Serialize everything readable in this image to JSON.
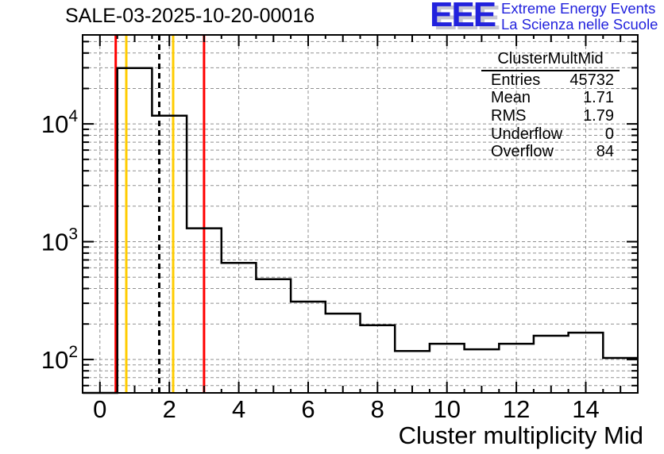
{
  "title": "SALE-03-2025-10-20-00016",
  "logo": {
    "acronym": "EEE",
    "line1": "Extreme Energy Events",
    "line2": "La Scienza nelle Scuole",
    "color": "#2222dd",
    "shadow_color": "#c8c8d2"
  },
  "stats_box": {
    "title": "ClusterMultMid",
    "rows": [
      {
        "label": "Entries",
        "value": "45732"
      },
      {
        "label": "Mean",
        "value": "1.71"
      },
      {
        "label": "RMS",
        "value": "1.79"
      },
      {
        "label": "Underflow",
        "value": "0"
      },
      {
        "label": "Overflow",
        "value": "84"
      }
    ]
  },
  "chart_data": {
    "type": "bar",
    "title": "SALE-03-2025-10-20-00016",
    "xlabel": "Cluster multiplicity Mid",
    "ylabel": "",
    "y_scale": "log",
    "x_range": [
      -0.5,
      15.5
    ],
    "y_range": [
      52,
      57000
    ],
    "grid": true,
    "grid_color": "#909090",
    "line_color": "#000000",
    "bin_width": 1,
    "bin_centers": [
      0,
      1,
      2,
      3,
      4,
      5,
      6,
      7,
      8,
      9,
      10,
      11,
      12,
      13,
      14,
      15
    ],
    "values": [
      0,
      29800,
      11750,
      1300,
      660,
      480,
      310,
      245,
      195,
      118,
      136,
      122,
      136,
      159,
      169,
      103
    ],
    "x_ticks_major": [
      0,
      2,
      4,
      6,
      8,
      10,
      12,
      14
    ],
    "x_tick_minor_step": 0.5,
    "y_ticks_major": [
      100,
      1000,
      10000
    ],
    "marker_lines": [
      {
        "x": 0.5,
        "color": "#ff0000",
        "style": "solid",
        "dx": -2
      },
      {
        "x": 0.76,
        "color": "#ffcc00",
        "style": "solid",
        "dx": 0
      },
      {
        "x": 1.71,
        "color": "#000000",
        "style": "dashed",
        "dx": 0
      },
      {
        "x": 2.11,
        "color": "#ffcc00",
        "style": "solid",
        "dx": 0
      },
      {
        "x": 3.0,
        "color": "#ff0000",
        "style": "solid",
        "dx": 0
      }
    ],
    "stats": {
      "entries": 45732,
      "mean": 1.71,
      "rms": 1.79,
      "underflow": 0,
      "overflow": 84
    },
    "legend_position": "none"
  }
}
